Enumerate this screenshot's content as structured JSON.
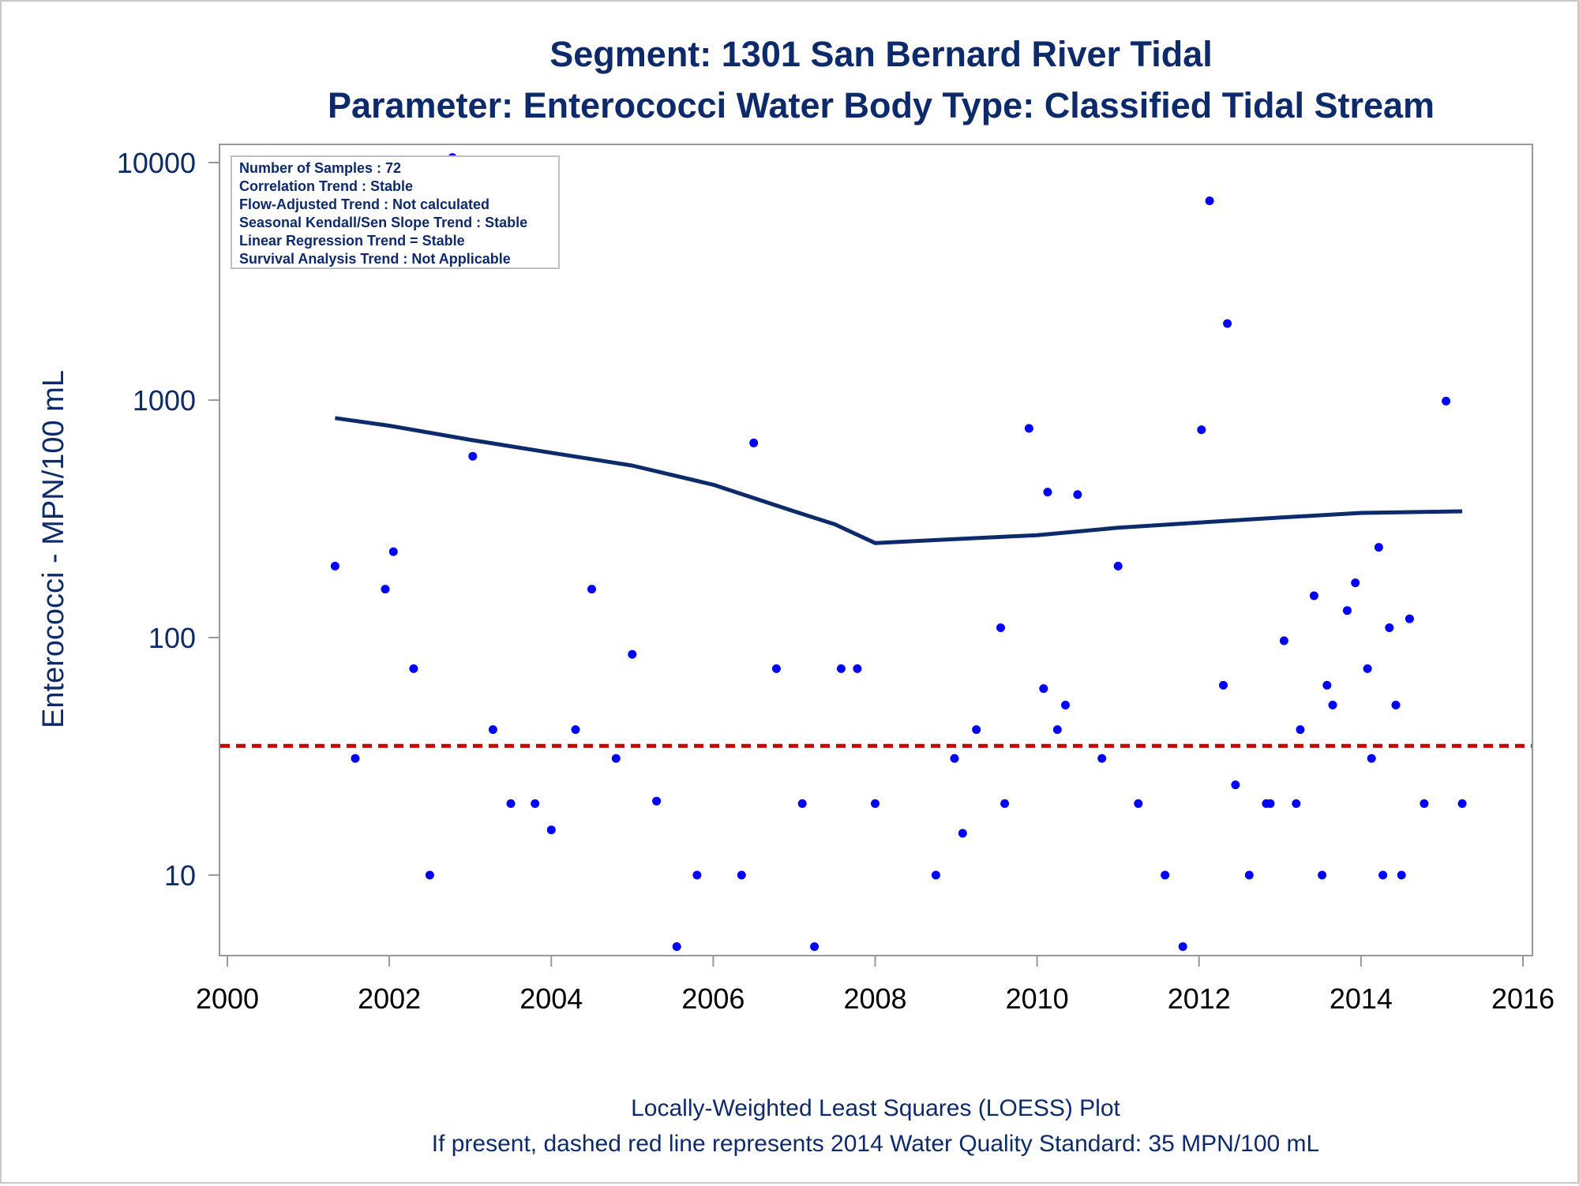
{
  "colors": {
    "title": "#0d2a6b",
    "axis_text": "#0d2a6b",
    "tick_text": "#000000",
    "points": "#0000ff",
    "loess": "#0d2a6b",
    "standard_line": "#cc0000",
    "frame": "#999999"
  },
  "chart_data": {
    "type": "scatter",
    "title": "Segment: 1301  San Bernard River Tidal",
    "subtitle": "Parameter: Enterococci   Water Body Type: Classified Tidal Stream",
    "xlabel": "",
    "ylabel": "Enterococci - MPN/100 mL",
    "footnote1": "Locally-Weighted Least Squares (LOESS) Plot",
    "footnote2": "If present, dashed red line represents 2014 Water Quality Standard: 35 MPN/100 mL",
    "y_scale": "log",
    "xlim": [
      2000,
      2016
    ],
    "ylim": [
      5,
      10000
    ],
    "grid": false,
    "x_ticks": [
      "2000",
      "2002",
      "2004",
      "2006",
      "2008",
      "2010",
      "2012",
      "2014",
      "2016"
    ],
    "y_ticks": [
      "10",
      "100",
      "1000",
      "10000"
    ],
    "standard_value": 35,
    "info_box": [
      "Number of Samples : 72",
      "Correlation Trend : Stable",
      "Flow-Adjusted Trend : Not calculated",
      "Seasonal Kendall/Sen Slope Trend : Stable",
      "Linear Regression Trend = Stable",
      "Survival Analysis Trend : Not Applicable"
    ],
    "samples": [
      {
        "x": 2001.33,
        "y": 200
      },
      {
        "x": 2001.58,
        "y": 31
      },
      {
        "x": 2001.95,
        "y": 160
      },
      {
        "x": 2002.05,
        "y": 230
      },
      {
        "x": 2002.3,
        "y": 74
      },
      {
        "x": 2002.5,
        "y": 10
      },
      {
        "x": 2002.78,
        "y": 10500
      },
      {
        "x": 2003.03,
        "y": 580
      },
      {
        "x": 2003.28,
        "y": 41
      },
      {
        "x": 2003.5,
        "y": 20
      },
      {
        "x": 2003.8,
        "y": 20
      },
      {
        "x": 2004.0,
        "y": 15.5
      },
      {
        "x": 2004.3,
        "y": 41
      },
      {
        "x": 2004.5,
        "y": 160
      },
      {
        "x": 2004.8,
        "y": 31
      },
      {
        "x": 2005.0,
        "y": 85
      },
      {
        "x": 2005.3,
        "y": 20.5
      },
      {
        "x": 2005.55,
        "y": 5
      },
      {
        "x": 2005.8,
        "y": 10
      },
      {
        "x": 2006.35,
        "y": 10
      },
      {
        "x": 2006.5,
        "y": 660
      },
      {
        "x": 2006.78,
        "y": 74
      },
      {
        "x": 2007.1,
        "y": 20
      },
      {
        "x": 2007.25,
        "y": 5
      },
      {
        "x": 2007.58,
        "y": 74
      },
      {
        "x": 2007.78,
        "y": 74
      },
      {
        "x": 2008.0,
        "y": 20
      },
      {
        "x": 2008.75,
        "y": 10
      },
      {
        "x": 2008.98,
        "y": 31
      },
      {
        "x": 2009.08,
        "y": 15
      },
      {
        "x": 2009.25,
        "y": 41
      },
      {
        "x": 2009.55,
        "y": 110
      },
      {
        "x": 2009.6,
        "y": 20
      },
      {
        "x": 2009.9,
        "y": 760
      },
      {
        "x": 2010.08,
        "y": 61
      },
      {
        "x": 2010.13,
        "y": 410
      },
      {
        "x": 2010.25,
        "y": 41
      },
      {
        "x": 2010.35,
        "y": 52
      },
      {
        "x": 2010.5,
        "y": 400
      },
      {
        "x": 2010.8,
        "y": 31
      },
      {
        "x": 2011.0,
        "y": 200
      },
      {
        "x": 2011.25,
        "y": 20
      },
      {
        "x": 2011.58,
        "y": 10
      },
      {
        "x": 2011.8,
        "y": 5
      },
      {
        "x": 2012.03,
        "y": 750
      },
      {
        "x": 2012.13,
        "y": 6900
      },
      {
        "x": 2012.3,
        "y": 63
      },
      {
        "x": 2012.35,
        "y": 2100
      },
      {
        "x": 2012.45,
        "y": 24
      },
      {
        "x": 2012.62,
        "y": 10
      },
      {
        "x": 2012.83,
        "y": 20
      },
      {
        "x": 2012.88,
        "y": 20
      },
      {
        "x": 2013.05,
        "y": 97
      },
      {
        "x": 2013.2,
        "y": 20
      },
      {
        "x": 2013.25,
        "y": 41
      },
      {
        "x": 2013.42,
        "y": 150
      },
      {
        "x": 2013.52,
        "y": 10
      },
      {
        "x": 2013.58,
        "y": 63
      },
      {
        "x": 2013.65,
        "y": 52
      },
      {
        "x": 2013.83,
        "y": 130
      },
      {
        "x": 2013.93,
        "y": 170
      },
      {
        "x": 2014.08,
        "y": 74
      },
      {
        "x": 2014.13,
        "y": 31
      },
      {
        "x": 2014.22,
        "y": 240
      },
      {
        "x": 2014.27,
        "y": 10
      },
      {
        "x": 2014.35,
        "y": 110
      },
      {
        "x": 2014.43,
        "y": 52
      },
      {
        "x": 2014.5,
        "y": 10
      },
      {
        "x": 2014.6,
        "y": 120
      },
      {
        "x": 2014.78,
        "y": 20
      },
      {
        "x": 2015.05,
        "y": 990
      },
      {
        "x": 2015.25,
        "y": 20
      }
    ],
    "loess": [
      {
        "x": 2001.33,
        "y": 840
      },
      {
        "x": 2002.0,
        "y": 780
      },
      {
        "x": 2003.0,
        "y": 680
      },
      {
        "x": 2004.0,
        "y": 600
      },
      {
        "x": 2005.0,
        "y": 530
      },
      {
        "x": 2006.0,
        "y": 440
      },
      {
        "x": 2007.0,
        "y": 340
      },
      {
        "x": 2007.5,
        "y": 300
      },
      {
        "x": 2008.0,
        "y": 250
      },
      {
        "x": 2009.0,
        "y": 260
      },
      {
        "x": 2010.0,
        "y": 270
      },
      {
        "x": 2011.0,
        "y": 290
      },
      {
        "x": 2012.0,
        "y": 305
      },
      {
        "x": 2013.0,
        "y": 320
      },
      {
        "x": 2014.0,
        "y": 335
      },
      {
        "x": 2015.25,
        "y": 340
      }
    ]
  }
}
